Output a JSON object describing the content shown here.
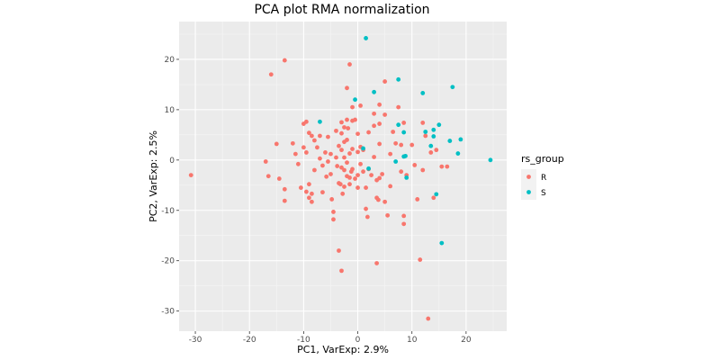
{
  "chart_data": {
    "type": "scatter",
    "title": "PCA plot RMA normalization",
    "xlabel": "PC1, VarExp: 2.9%",
    "ylabel": "PC2, VarExp: 2.5%",
    "xlim": [
      -33,
      27.5
    ],
    "ylim": [
      -34,
      27.5
    ],
    "x_ticks": [
      -30,
      -20,
      -10,
      0,
      10,
      20
    ],
    "y_ticks": [
      -30,
      -20,
      -10,
      0,
      10,
      20
    ],
    "x_tick_labels": [
      "-30",
      "-20",
      "-10",
      "0",
      "10",
      "20"
    ],
    "y_tick_labels": [
      "-30",
      "-20",
      "-10",
      "0",
      "10",
      "20"
    ],
    "grid": true,
    "legend": {
      "title": "rs_group",
      "placement": "right"
    },
    "series": [
      {
        "name": "R",
        "color": "#F8766D",
        "points": [
          [
            -30.8,
            -3.0
          ],
          [
            -16.5,
            -3.2
          ],
          [
            -16.0,
            17.0
          ],
          [
            -13.5,
            19.8
          ],
          [
            -15.0,
            3.2
          ],
          [
            -14.5,
            -3.7
          ],
          [
            -13.5,
            -5.8
          ],
          [
            -13.5,
            -8.1
          ],
          [
            -12.0,
            3.3
          ],
          [
            -11.5,
            1.2
          ],
          [
            -11.0,
            -0.8
          ],
          [
            -10.5,
            -5.5
          ],
          [
            -10.0,
            7.2
          ],
          [
            -9.5,
            7.6
          ],
          [
            -10.0,
            2.5
          ],
          [
            -9.5,
            1.5
          ],
          [
            -9.0,
            5.4
          ],
          [
            -8.5,
            4.8
          ],
          [
            -8.0,
            3.9
          ],
          [
            -9.5,
            -6.3
          ],
          [
            -9.0,
            -7.5
          ],
          [
            -9.0,
            -4.8
          ],
          [
            -8.5,
            -6.7
          ],
          [
            -8.5,
            -8.3
          ],
          [
            -8.0,
            -2.0
          ],
          [
            -7.5,
            2.5
          ],
          [
            -7.0,
            4.8
          ],
          [
            -7.0,
            0.3
          ],
          [
            -6.5,
            -1.1
          ],
          [
            -6.5,
            -6.4
          ],
          [
            -6.0,
            1.5
          ],
          [
            -5.8,
            -3.3
          ],
          [
            -5.5,
            4.6
          ],
          [
            -5.5,
            -0.3
          ],
          [
            -5.0,
            1.2
          ],
          [
            -5.0,
            -2.8
          ],
          [
            -4.8,
            -7.8
          ],
          [
            -4.5,
            -10.3
          ],
          [
            -4.5,
            -11.8
          ],
          [
            -4.0,
            5.8
          ],
          [
            -4.0,
            0.5
          ],
          [
            -3.8,
            -1.2
          ],
          [
            -3.5,
            2.8
          ],
          [
            -3.5,
            -4.6
          ],
          [
            -3.2,
            -4.8
          ],
          [
            -3.0,
            7.5
          ],
          [
            -3.0,
            5.3
          ],
          [
            -3.0,
            2.0
          ],
          [
            -3.0,
            -1.5
          ],
          [
            -2.8,
            -6.7
          ],
          [
            -2.5,
            6.5
          ],
          [
            -2.5,
            3.6
          ],
          [
            -2.5,
            0.5
          ],
          [
            -2.5,
            -2.0
          ],
          [
            -2.5,
            -5.3
          ],
          [
            -2.0,
            14.3
          ],
          [
            -2.0,
            8.0
          ],
          [
            -2.0,
            4.0
          ],
          [
            -2.0,
            -0.5
          ],
          [
            -2.0,
            -3.2
          ],
          [
            -1.8,
            6.3
          ],
          [
            -1.5,
            19.0
          ],
          [
            -1.5,
            1.3
          ],
          [
            -1.5,
            -4.8
          ],
          [
            -1.5,
            -3.5
          ],
          [
            -1.2,
            -2.3
          ],
          [
            -1.0,
            10.5
          ],
          [
            -1.0,
            7.8
          ],
          [
            -1.0,
            2.2
          ],
          [
            -1.0,
            -1.8
          ],
          [
            -0.5,
            8.0
          ],
          [
            -0.5,
            -3.7
          ],
          [
            0.0,
            5.2
          ],
          [
            0.0,
            1.6
          ],
          [
            0.0,
            -3.0
          ],
          [
            0.0,
            -5.5
          ],
          [
            0.5,
            10.8
          ],
          [
            0.5,
            2.6
          ],
          [
            0.5,
            -0.8
          ],
          [
            1.0,
            2.0
          ],
          [
            1.0,
            -2.3
          ],
          [
            1.5,
            -5.5
          ],
          [
            1.5,
            -9.7
          ],
          [
            1.8,
            -11.3
          ],
          [
            2.0,
            5.5
          ],
          [
            2.0,
            -1.8
          ],
          [
            2.5,
            -3.0
          ],
          [
            3.0,
            9.2
          ],
          [
            3.0,
            6.8
          ],
          [
            3.0,
            0.6
          ],
          [
            3.5,
            -4.0
          ],
          [
            3.5,
            -7.5
          ],
          [
            3.8,
            -7.9
          ],
          [
            4.0,
            11.0
          ],
          [
            4.0,
            7.2
          ],
          [
            4.0,
            3.2
          ],
          [
            4.0,
            -3.6
          ],
          [
            4.5,
            -2.8
          ],
          [
            5.0,
            15.6
          ],
          [
            5.0,
            -8.3
          ],
          [
            5.0,
            9.0
          ],
          [
            5.5,
            -11.0
          ],
          [
            6.0,
            1.2
          ],
          [
            6.0,
            -5.2
          ],
          [
            6.5,
            5.6
          ],
          [
            7.0,
            3.3
          ],
          [
            7.5,
            10.5
          ],
          [
            8.0,
            3.0
          ],
          [
            8.0,
            -2.3
          ],
          [
            8.5,
            7.4
          ],
          [
            8.5,
            -11.1
          ],
          [
            8.5,
            -12.7
          ],
          [
            9.0,
            -3.0
          ],
          [
            10.0,
            3.0
          ],
          [
            10.5,
            -1.0
          ],
          [
            11.0,
            -7.8
          ],
          [
            11.5,
            -19.8
          ],
          [
            12.0,
            7.4
          ],
          [
            12.0,
            -2.0
          ],
          [
            12.5,
            4.8
          ],
          [
            13.0,
            -31.5
          ],
          [
            14.0,
            -7.5
          ],
          [
            14.5,
            2.0
          ],
          [
            15.5,
            -1.3
          ],
          [
            16.5,
            -1.3
          ],
          [
            13.5,
            1.5
          ],
          [
            -3.0,
            -22.0
          ],
          [
            -3.5,
            -18.0
          ],
          [
            3.5,
            -20.5
          ],
          [
            -17.0,
            -0.3
          ]
        ]
      },
      {
        "name": "S",
        "color": "#00BFC4",
        "points": [
          [
            1.5,
            24.2
          ],
          [
            -7.0,
            7.6
          ],
          [
            -0.5,
            12.0
          ],
          [
            1.0,
            2.3
          ],
          [
            2.0,
            -1.7
          ],
          [
            3.0,
            13.5
          ],
          [
            7.5,
            16.0
          ],
          [
            7.5,
            7.0
          ],
          [
            7.0,
            -0.3
          ],
          [
            8.5,
            5.5
          ],
          [
            8.5,
            0.7
          ],
          [
            8.8,
            0.8
          ],
          [
            9.0,
            -3.5
          ],
          [
            12.0,
            13.3
          ],
          [
            12.5,
            5.6
          ],
          [
            13.5,
            2.8
          ],
          [
            14.0,
            4.7
          ],
          [
            14.0,
            6.0
          ],
          [
            14.5,
            -6.8
          ],
          [
            15.0,
            7.0
          ],
          [
            15.5,
            -16.5
          ],
          [
            17.0,
            3.8
          ],
          [
            17.5,
            14.5
          ],
          [
            18.5,
            1.3
          ],
          [
            19.0,
            4.1
          ],
          [
            24.5,
            0.0
          ]
        ]
      }
    ]
  }
}
